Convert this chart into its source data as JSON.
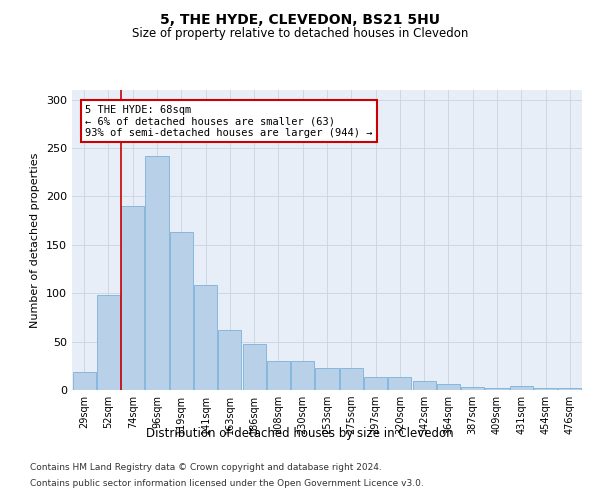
{
  "title1": "5, THE HYDE, CLEVEDON, BS21 5HU",
  "title2": "Size of property relative to detached houses in Clevedon",
  "xlabel": "Distribution of detached houses by size in Clevedon",
  "ylabel": "Number of detached properties",
  "categories": [
    "29sqm",
    "52sqm",
    "74sqm",
    "96sqm",
    "119sqm",
    "141sqm",
    "163sqm",
    "186sqm",
    "208sqm",
    "230sqm",
    "253sqm",
    "275sqm",
    "297sqm",
    "320sqm",
    "342sqm",
    "364sqm",
    "387sqm",
    "409sqm",
    "431sqm",
    "454sqm",
    "476sqm"
  ],
  "values": [
    19,
    98,
    190,
    242,
    163,
    109,
    62,
    48,
    30,
    30,
    23,
    23,
    13,
    13,
    9,
    6,
    3,
    2,
    4,
    2,
    2
  ],
  "bar_color": "#b8d0e8",
  "bar_edge_color": "#6aaad4",
  "grid_color": "#c8d4e0",
  "vline_x": 1.5,
  "vline_color": "#cc0000",
  "annotation_text": "5 THE HYDE: 68sqm\n← 6% of detached houses are smaller (63)\n93% of semi-detached houses are larger (944) →",
  "annotation_box_color": "#ffffff",
  "annotation_box_edge_color": "#cc0000",
  "ylim": [
    0,
    310
  ],
  "yticks": [
    0,
    50,
    100,
    150,
    200,
    250,
    300
  ],
  "footer1": "Contains HM Land Registry data © Crown copyright and database right 2024.",
  "footer2": "Contains public sector information licensed under the Open Government Licence v3.0.",
  "bg_color": "#e8eef8",
  "fig_width": 6.0,
  "fig_height": 5.0,
  "dpi": 100
}
